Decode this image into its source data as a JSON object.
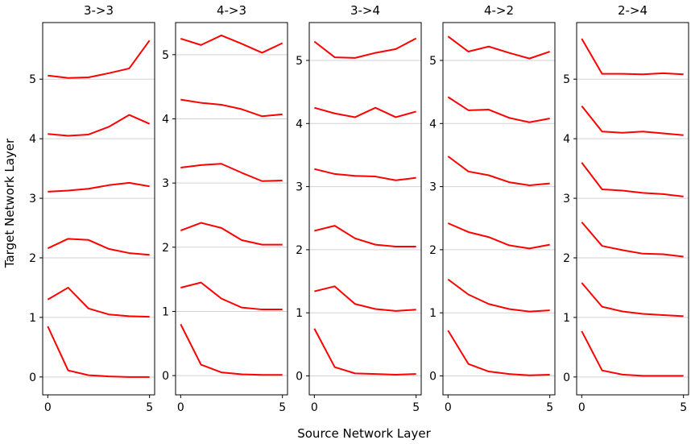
{
  "figure": {
    "xlabel": "Source Network Layer",
    "ylabel": "Target Network Layer"
  },
  "chart_data": [
    {
      "type": "line",
      "title": "3->3",
      "x": [
        0,
        1,
        2,
        3,
        4,
        5
      ],
      "xticks": [
        0,
        5
      ],
      "yticks": [
        0,
        1,
        2,
        3,
        4,
        5
      ],
      "ylim": [
        -0.3,
        5.95
      ],
      "xlim": [
        -0.25,
        5.25
      ],
      "grid_y": true,
      "line_color": "#ff0000",
      "series": [
        {
          "values": [
            0.85,
            0.11,
            0.03,
            0.01,
            0.0,
            0.0
          ]
        },
        {
          "values": [
            1.3,
            1.5,
            1.15,
            1.05,
            1.02,
            1.01
          ]
        },
        {
          "values": [
            2.16,
            2.32,
            2.3,
            2.15,
            2.08,
            2.05
          ]
        },
        {
          "values": [
            3.11,
            3.13,
            3.16,
            3.22,
            3.26,
            3.2
          ]
        },
        {
          "values": [
            4.08,
            4.05,
            4.07,
            4.2,
            4.4,
            4.25
          ]
        },
        {
          "values": [
            5.06,
            5.02,
            5.03,
            5.1,
            5.18,
            5.65
          ]
        }
      ]
    },
    {
      "type": "line",
      "title": "4->3",
      "x": [
        0,
        1,
        2,
        3,
        4,
        5
      ],
      "xticks": [
        0,
        5
      ],
      "yticks": [
        0,
        1,
        2,
        3,
        4,
        5
      ],
      "ylim": [
        -0.3,
        5.5
      ],
      "xlim": [
        -0.25,
        5.25
      ],
      "grid_y": true,
      "line_color": "#ff0000",
      "series": [
        {
          "values": [
            0.8,
            0.17,
            0.05,
            0.02,
            0.01,
            0.01
          ]
        },
        {
          "values": [
            1.37,
            1.45,
            1.2,
            1.06,
            1.03,
            1.03
          ]
        },
        {
          "values": [
            2.26,
            2.38,
            2.3,
            2.11,
            2.04,
            2.04
          ]
        },
        {
          "values": [
            3.24,
            3.28,
            3.3,
            3.16,
            3.03,
            3.04
          ]
        },
        {
          "values": [
            4.3,
            4.25,
            4.22,
            4.15,
            4.04,
            4.07
          ]
        },
        {
          "values": [
            5.25,
            5.15,
            5.3,
            5.17,
            5.03,
            5.18
          ]
        }
      ]
    },
    {
      "type": "line",
      "title": "3->4",
      "x": [
        0,
        1,
        2,
        3,
        4,
        5
      ],
      "xticks": [
        0,
        5
      ],
      "yticks": [
        0,
        1,
        2,
        3,
        4,
        5
      ],
      "ylim": [
        -0.3,
        5.6
      ],
      "xlim": [
        -0.25,
        5.25
      ],
      "grid_y": true,
      "line_color": "#ff0000",
      "series": [
        {
          "values": [
            0.75,
            0.14,
            0.04,
            0.03,
            0.02,
            0.03
          ]
        },
        {
          "values": [
            1.34,
            1.42,
            1.14,
            1.06,
            1.03,
            1.05
          ]
        },
        {
          "values": [
            2.3,
            2.38,
            2.18,
            2.08,
            2.05,
            2.05
          ]
        },
        {
          "values": [
            3.28,
            3.2,
            3.17,
            3.16,
            3.1,
            3.14
          ]
        },
        {
          "values": [
            4.25,
            4.16,
            4.1,
            4.25,
            4.1,
            4.19
          ]
        },
        {
          "values": [
            5.3,
            5.05,
            5.04,
            5.12,
            5.18,
            5.35
          ]
        }
      ]
    },
    {
      "type": "line",
      "title": "4->2",
      "x": [
        0,
        1,
        2,
        3,
        4,
        5
      ],
      "xticks": [
        0,
        5
      ],
      "yticks": [
        0,
        1,
        2,
        3,
        4,
        5
      ],
      "ylim": [
        -0.3,
        5.6
      ],
      "xlim": [
        -0.25,
        5.25
      ],
      "grid_y": true,
      "line_color": "#ff0000",
      "series": [
        {
          "values": [
            0.72,
            0.19,
            0.07,
            0.03,
            0.01,
            0.02
          ]
        },
        {
          "values": [
            1.53,
            1.29,
            1.14,
            1.06,
            1.02,
            1.04
          ]
        },
        {
          "values": [
            2.42,
            2.28,
            2.2,
            2.07,
            2.02,
            2.08
          ]
        },
        {
          "values": [
            3.48,
            3.24,
            3.18,
            3.07,
            3.02,
            3.05
          ]
        },
        {
          "values": [
            4.42,
            4.21,
            4.22,
            4.09,
            4.02,
            4.08
          ]
        },
        {
          "values": [
            5.38,
            5.14,
            5.22,
            5.12,
            5.03,
            5.14
          ]
        }
      ]
    },
    {
      "type": "line",
      "title": "2->4",
      "x": [
        0,
        1,
        2,
        3,
        4,
        5
      ],
      "xticks": [
        0,
        5
      ],
      "yticks": [
        0,
        1,
        2,
        3,
        4,
        5
      ],
      "ylim": [
        -0.3,
        5.95
      ],
      "xlim": [
        -0.25,
        5.25
      ],
      "grid_y": true,
      "line_color": "#ff0000",
      "series": [
        {
          "values": [
            0.77,
            0.11,
            0.04,
            0.02,
            0.02,
            0.02
          ]
        },
        {
          "values": [
            1.58,
            1.18,
            1.1,
            1.06,
            1.04,
            1.02
          ]
        },
        {
          "values": [
            2.6,
            2.2,
            2.13,
            2.07,
            2.06,
            2.02
          ]
        },
        {
          "values": [
            3.6,
            3.15,
            3.13,
            3.09,
            3.07,
            3.03
          ]
        },
        {
          "values": [
            4.55,
            4.12,
            4.1,
            4.12,
            4.09,
            4.06
          ]
        },
        {
          "values": [
            5.68,
            5.09,
            5.09,
            5.08,
            5.1,
            5.08
          ]
        }
      ]
    }
  ]
}
